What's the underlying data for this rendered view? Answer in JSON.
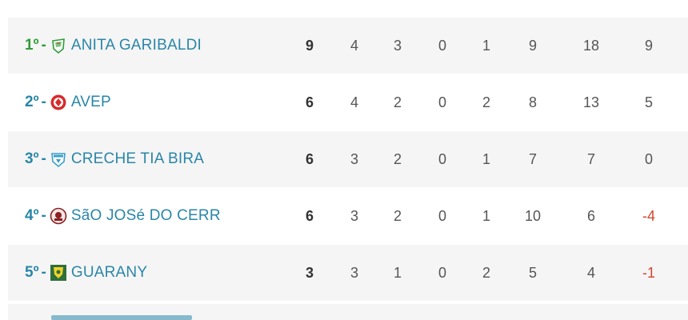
{
  "rows": [
    {
      "pos": "1º",
      "sep": "-",
      "team": "ANITA GARIBALDI",
      "crest": "anita-garibaldi-crest-icon",
      "pts": "9",
      "j": "4",
      "v": "3",
      "e": "0",
      "d": "1",
      "gp": "9",
      "gc": "18",
      "sg": "9"
    },
    {
      "pos": "2º",
      "sep": "-",
      "team": "AVEP",
      "crest": "avep-crest-icon",
      "pts": "6",
      "j": "4",
      "v": "2",
      "e": "0",
      "d": "2",
      "gp": "8",
      "gc": "13",
      "sg": "5"
    },
    {
      "pos": "3º",
      "sep": "-",
      "team": "CRECHE TIA BIRA",
      "crest": "creche-tia-bira-crest-icon",
      "pts": "6",
      "j": "3",
      "v": "2",
      "e": "0",
      "d": "1",
      "gp": "7",
      "gc": "7",
      "sg": "0"
    },
    {
      "pos": "4º",
      "sep": "-",
      "team": "SãO JOSé DO CERR",
      "crest": "sao-jose-crest-icon",
      "pts": "6",
      "j": "3",
      "v": "2",
      "e": "0",
      "d": "1",
      "gp": "10",
      "gc": "6",
      "sg": "-4"
    },
    {
      "pos": "5º",
      "sep": "-",
      "team": "GUARANY",
      "crest": "guarany-crest-icon",
      "pts": "3",
      "j": "3",
      "v": "1",
      "e": "0",
      "d": "2",
      "gp": "5",
      "gc": "4",
      "sg": "-1"
    }
  ],
  "colors": {
    "position_leader": "#2e9c3a",
    "team_link": "#2a86a8",
    "negative": "#d0452f",
    "row_alt": "#f5f5f5"
  }
}
